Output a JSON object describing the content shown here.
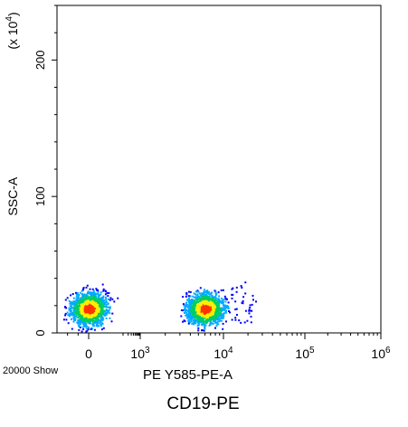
{
  "chart_data": {
    "type": "scatter",
    "subtype": "flow-cytometry density dot plot",
    "xlabel": "PE Y585-PE-A",
    "ylabel": "SSC-A",
    "y_multiplier": "(x 10^4)",
    "x_scale": "biexponential",
    "x_ticks": [
      "0",
      "10^3",
      "10^4",
      "10^5",
      "10^6"
    ],
    "xlim": [
      -300,
      1000000
    ],
    "y_ticks": [
      0,
      100,
      200
    ],
    "ylim": [
      0,
      240
    ],
    "populations": [
      {
        "center_x": 0,
        "center_y": 18,
        "spread_y": 9
      },
      {
        "center_x": 6000,
        "center_y": 18,
        "spread_y": 9
      }
    ],
    "grid": false,
    "legend": "none",
    "colors": [
      "#0000ff",
      "#00aaff",
      "#00cc66",
      "#ffee00",
      "#ff3300"
    ]
  },
  "footer": {
    "event_count": "20000 Show",
    "caption": "CD19-PE"
  }
}
